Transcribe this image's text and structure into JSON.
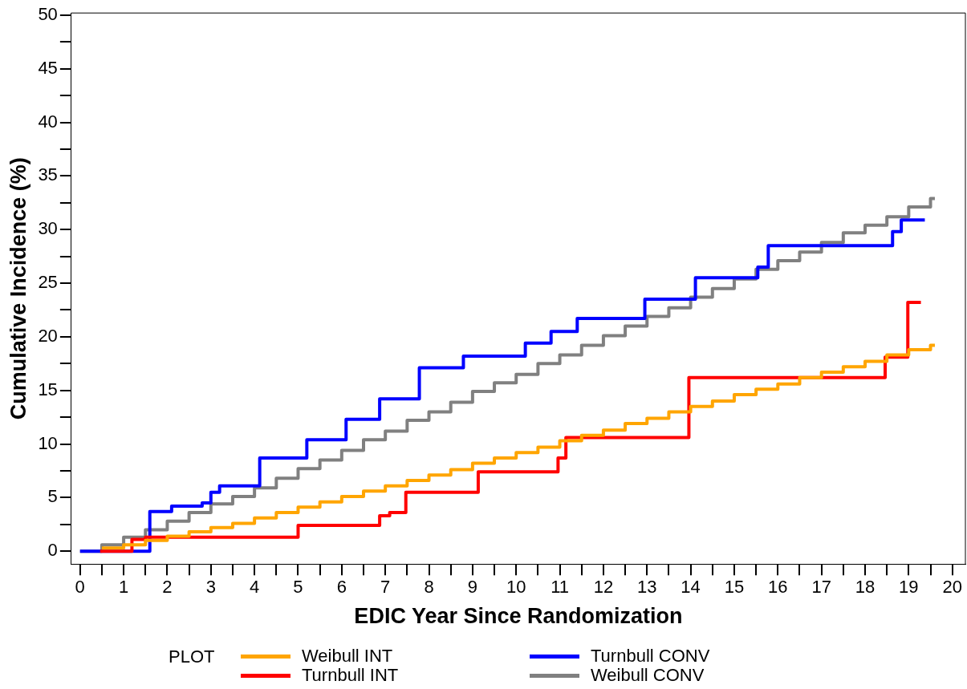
{
  "chart_data": {
    "type": "step",
    "xlabel": "EDIC Year Since Randomization",
    "ylabel": "Cumulative Incidence (%)",
    "legend_title": "PLOT",
    "legend": "bottom",
    "grid": false,
    "line_style": "solid",
    "marker": "none",
    "xlim": [
      -0.2,
      20.3
    ],
    "ylim": [
      -1.2,
      50.2
    ],
    "xticks": [
      0,
      {
        "value": 0.5,
        "label": null
      },
      1,
      {
        "value": 1.5,
        "label": null
      },
      2,
      {
        "value": 2.5,
        "label": null
      },
      3,
      {
        "value": 3.5,
        "label": null
      },
      4,
      {
        "value": 4.5,
        "label": null
      },
      5,
      {
        "value": 5.5,
        "label": null
      },
      6,
      {
        "value": 6.5,
        "label": null
      },
      7,
      {
        "value": 7.5,
        "label": null
      },
      8,
      {
        "value": 8.5,
        "label": null
      },
      9,
      {
        "value": 9.5,
        "label": null
      },
      10,
      {
        "value": 10.5,
        "label": null
      },
      11,
      {
        "value": 11.5,
        "label": null
      },
      12,
      {
        "value": 12.5,
        "label": null
      },
      13,
      {
        "value": 13.5,
        "label": null
      },
      14,
      {
        "value": 14.5,
        "label": null
      },
      15,
      {
        "value": 15.5,
        "label": null
      },
      16,
      {
        "value": 16.5,
        "label": null
      },
      17,
      {
        "value": 17.5,
        "label": null
      },
      18,
      {
        "value": 18.5,
        "label": null
      },
      19,
      {
        "value": 19.5,
        "label": null
      },
      20
    ],
    "yticks": [
      0,
      {
        "value": 2.5,
        "label": null
      },
      5,
      {
        "value": 7.5,
        "label": null
      },
      10,
      {
        "value": 12.5,
        "label": null
      },
      15,
      {
        "value": 17.5,
        "label": null
      },
      20,
      {
        "value": 22.5,
        "label": null
      },
      25,
      {
        "value": 27.5,
        "label": null
      },
      30,
      {
        "value": 32.5,
        "label": null
      },
      35,
      {
        "value": 37.5,
        "label": null
      },
      40,
      {
        "value": 42.5,
        "label": null
      },
      45,
      {
        "value": 47.5,
        "label": null
      },
      50
    ],
    "series": [
      {
        "name": "Weibull INT",
        "color": "#ffa500",
        "x": [
          0.5,
          1,
          1.5,
          2,
          2.5,
          3,
          3.5,
          4,
          4.5,
          5,
          5.5,
          6,
          6.5,
          7,
          7.5,
          8,
          8.5,
          9,
          9.5,
          10,
          10.5,
          11,
          11.5,
          12,
          12.5,
          13,
          13.5,
          14,
          14.5,
          15,
          15.5,
          16,
          16.5,
          17,
          17.5,
          18,
          18.5,
          19,
          19.5,
          19.6
        ],
        "values": [
          0.3,
          0.6,
          1.0,
          1.4,
          1.8,
          2.2,
          2.6,
          3.1,
          3.6,
          4.1,
          4.6,
          5.1,
          5.6,
          6.1,
          6.6,
          7.1,
          7.6,
          8.2,
          8.7,
          9.2,
          9.7,
          10.3,
          10.8,
          11.3,
          11.9,
          12.4,
          13.0,
          13.5,
          14.0,
          14.6,
          15.1,
          15.6,
          16.2,
          16.7,
          17.2,
          17.7,
          18.3,
          18.8,
          19.2,
          19.2
        ]
      },
      {
        "name": "Turnbull INT",
        "color": "#ff0000",
        "x": [
          0.46,
          1.19,
          1.5,
          5.0,
          6.87,
          7.1,
          7.47,
          9.13,
          10.96,
          11.14,
          13.96,
          18.46,
          18.98,
          19.28
        ],
        "values": [
          0,
          1.1,
          1.3,
          2.4,
          3.3,
          3.6,
          5.5,
          7.4,
          8.7,
          10.6,
          16.2,
          18.1,
          23.2,
          23.2
        ]
      },
      {
        "name": "Turnbull CONV",
        "color": "#0000ff",
        "x": [
          0,
          1.6,
          2.1,
          2.8,
          3.0,
          3.2,
          4.12,
          5.2,
          6.1,
          6.87,
          7.78,
          8.79,
          10.21,
          10.8,
          11.4,
          12.95,
          14.11,
          15.54,
          15.78,
          18.63,
          18.83,
          19.37
        ],
        "values": [
          0,
          3.7,
          4.2,
          4.5,
          5.5,
          6.1,
          8.7,
          10.4,
          12.3,
          14.2,
          17.1,
          18.2,
          19.4,
          20.5,
          21.7,
          23.5,
          25.5,
          26.5,
          28.5,
          29.8,
          30.9,
          30.9
        ]
      },
      {
        "name": "Weibull CONV",
        "color": "#808080",
        "x": [
          0,
          0.5,
          1,
          1.5,
          2,
          2.5,
          3,
          3.5,
          4,
          4.5,
          5,
          5.5,
          6,
          6.5,
          7,
          7.5,
          8,
          8.5,
          9,
          9.5,
          10,
          10.5,
          11,
          11.5,
          12,
          12.5,
          13,
          13.5,
          14,
          14.5,
          15,
          15.5,
          16,
          16.5,
          17,
          17.5,
          18,
          18.5,
          19,
          19.5,
          19.6
        ],
        "values": [
          0,
          0.6,
          1.3,
          2.0,
          2.8,
          3.6,
          4.4,
          5.1,
          5.9,
          6.8,
          7.7,
          8.5,
          9.4,
          10.4,
          11.2,
          12.2,
          13.0,
          13.9,
          14.9,
          15.7,
          16.5,
          17.5,
          18.3,
          19.2,
          20.1,
          21.0,
          21.9,
          22.7,
          23.7,
          24.5,
          25.4,
          26.3,
          27.1,
          27.9,
          28.8,
          29.7,
          30.4,
          31.2,
          32.1,
          32.9,
          32.9
        ]
      }
    ]
  }
}
